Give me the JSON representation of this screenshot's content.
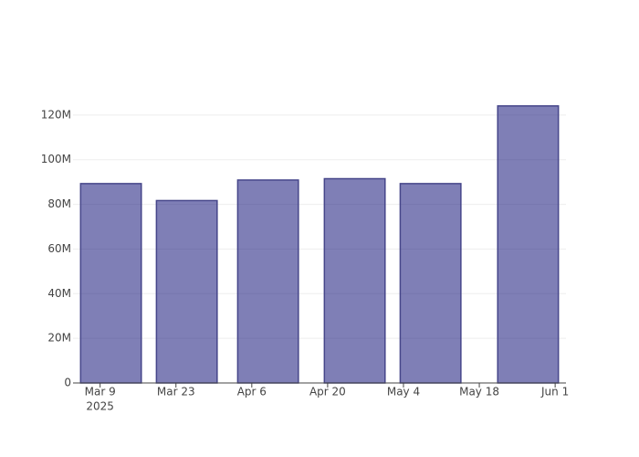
{
  "chart_data": {
    "type": "bar",
    "x": [
      "2025-03-11",
      "2025-03-25",
      "2025-04-09",
      "2025-04-25",
      "2025-05-09",
      "2025-05-27"
    ],
    "values": [
      89300000,
      81700000,
      90900000,
      91500000,
      89300000,
      124100000
    ],
    "color": "rgba(0,0,110,0.5)",
    "edge_color": "#46468a",
    "xlim": [
      "2025-03-04",
      "2025-06-03"
    ],
    "xticks": [
      {
        "value": "2025-03-09",
        "label": "Mar 9",
        "sublabel": "2025"
      },
      {
        "value": "2025-03-23",
        "label": "Mar 23"
      },
      {
        "value": "2025-04-06",
        "label": "Apr 6"
      },
      {
        "value": "2025-04-20",
        "label": "Apr 20"
      },
      {
        "value": "2025-05-04",
        "label": "May 4"
      },
      {
        "value": "2025-05-18",
        "label": "May 18"
      },
      {
        "value": "2025-06-01",
        "label": "Jun 1"
      }
    ],
    "ylim": [
      0,
      130600000
    ],
    "yticks": [
      0,
      {
        "value": 20000000,
        "label": "20M"
      },
      {
        "value": 40000000,
        "label": "40M"
      },
      {
        "value": 60000000,
        "label": "60M"
      },
      {
        "value": 80000000,
        "label": "80M"
      },
      {
        "value": 100000000,
        "label": "100M"
      },
      {
        "value": 120000000,
        "label": "120M"
      }
    ],
    "grid": true
  }
}
